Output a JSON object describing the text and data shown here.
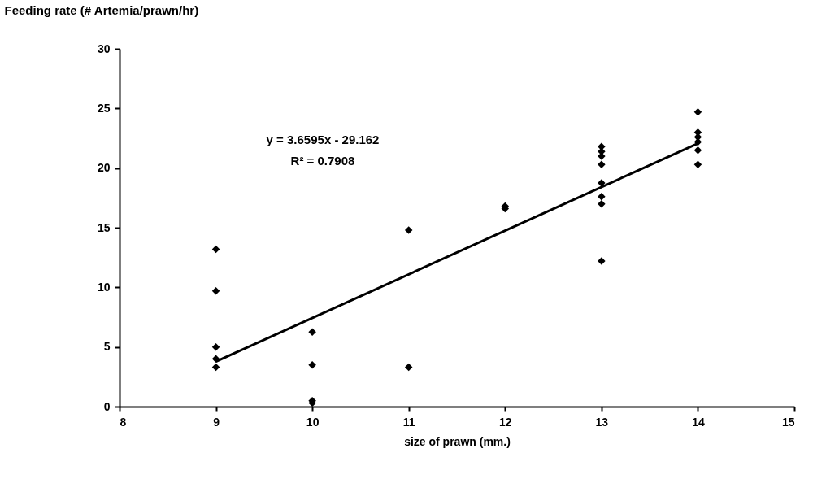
{
  "chart_data": {
    "type": "scatter",
    "xlabel": "size of prawn (mm.)",
    "ylabel": "Feeding rate (# Artemia/prawn/hr)",
    "xlim": [
      8,
      15
    ],
    "xticks": [
      8,
      9,
      10,
      11,
      12,
      13,
      14,
      15
    ],
    "ylim": [
      0,
      30
    ],
    "yticks": [
      0,
      5,
      10,
      15,
      20,
      25,
      30
    ],
    "grid": false,
    "marker": "diamond",
    "annotations": [
      "y = 3.6595x - 29.162",
      "R² = 0.7908"
    ],
    "series": [
      {
        "color": "#000000",
        "x": [
          9,
          9,
          9,
          9,
          9,
          10,
          10,
          10,
          10,
          11,
          11,
          12,
          12,
          13,
          13,
          13,
          13,
          13,
          13,
          13,
          13,
          14,
          14,
          14,
          14,
          14,
          14
        ],
        "values": [
          13.2,
          9.7,
          5.0,
          4.0,
          3.3,
          6.25,
          3.5,
          0.5,
          0.3,
          14.8,
          3.3,
          16.6,
          16.8,
          21.8,
          21.4,
          21.0,
          20.3,
          18.75,
          17.6,
          17.0,
          12.2,
          24.7,
          23.0,
          22.6,
          22.2,
          21.5,
          20.3
        ]
      },
      {
        "type": "line",
        "color": "#000000",
        "marker": "none",
        "x": [
          9,
          14
        ],
        "values": [
          3.77,
          22.07
        ]
      }
    ]
  }
}
